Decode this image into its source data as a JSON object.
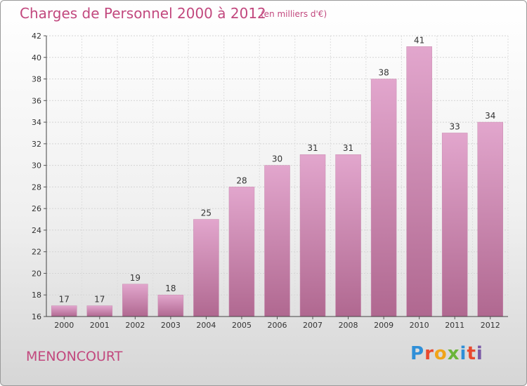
{
  "header": {
    "title": "Charges de Personnel 2000 à 2012",
    "subtitle": "(en milliers d'€)"
  },
  "footer": {
    "commune": "MENONCOURT",
    "logo_text": "Proxiti"
  },
  "colors": {
    "accent": "#c2487e",
    "bar_top": "#e2a6cd",
    "bar_bottom": "#b06890"
  },
  "chart_data": {
    "type": "bar",
    "categories": [
      "2000",
      "2001",
      "2002",
      "2003",
      "2004",
      "2005",
      "2006",
      "2007",
      "2008",
      "2009",
      "2010",
      "2011",
      "2012"
    ],
    "values": [
      17,
      17,
      19,
      18,
      25,
      28,
      30,
      31,
      31,
      38,
      41,
      33,
      34
    ],
    "title": "Charges de Personnel 2000 à 2012",
    "subtitle": "(en milliers d'€)",
    "ylim": [
      16,
      42
    ],
    "yticks": [
      16,
      18,
      20,
      22,
      24,
      26,
      28,
      30,
      32,
      34,
      36,
      38,
      40,
      42
    ],
    "grid": true
  }
}
